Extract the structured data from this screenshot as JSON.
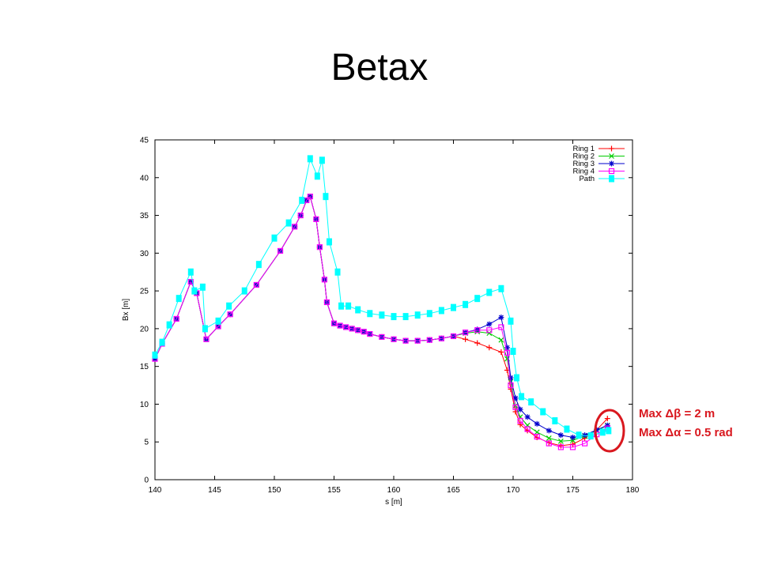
{
  "slide": {
    "title": "Betax",
    "annotation": {
      "line1": "Max Δβ = 2 m",
      "line2": "Max Δα = 0.5 rad"
    },
    "highlight_color": "#d9181f"
  },
  "chart_data": {
    "type": "line",
    "title": "",
    "xlabel": "s [m]",
    "ylabel": "Bx [m]",
    "xlim": [
      140,
      180
    ],
    "ylim": [
      0,
      45
    ],
    "xticks": [
      140,
      145,
      150,
      155,
      160,
      165,
      170,
      175,
      180
    ],
    "yticks": [
      0,
      5,
      10,
      15,
      20,
      25,
      30,
      35,
      40,
      45
    ],
    "grid": false,
    "legend_position": "top-right",
    "series": [
      {
        "name": "Ring 1",
        "color": "#ff0000",
        "marker": "plus",
        "points": [
          [
            140,
            16
          ],
          [
            140.6,
            18
          ],
          [
            141.8,
            21.3
          ],
          [
            143,
            26.2
          ],
          [
            143.5,
            24.7
          ],
          [
            144.3,
            18.6
          ],
          [
            145.3,
            20.3
          ],
          [
            146.3,
            21.9
          ],
          [
            148.5,
            25.8
          ],
          [
            150.5,
            30.3
          ],
          [
            151.7,
            33.5
          ],
          [
            152.2,
            35
          ],
          [
            152.7,
            37
          ],
          [
            153,
            37.5
          ],
          [
            153.5,
            34.5
          ],
          [
            153.8,
            30.8
          ],
          [
            154.2,
            26.5
          ],
          [
            154.4,
            23.5
          ],
          [
            155,
            20.7
          ],
          [
            155.5,
            20.4
          ],
          [
            156,
            20.2
          ],
          [
            156.5,
            20
          ],
          [
            157,
            19.8
          ],
          [
            157.5,
            19.6
          ],
          [
            158,
            19.3
          ],
          [
            159,
            18.9
          ],
          [
            160,
            18.6
          ],
          [
            161,
            18.4
          ],
          [
            162,
            18.4
          ],
          [
            163,
            18.5
          ],
          [
            164,
            18.7
          ],
          [
            165,
            19
          ],
          [
            166,
            18.6
          ],
          [
            167,
            18.1
          ],
          [
            168,
            17.5
          ],
          [
            169,
            16.9
          ],
          [
            169.5,
            14.5
          ],
          [
            169.8,
            12
          ],
          [
            170.2,
            9
          ],
          [
            170.6,
            7.3
          ],
          [
            171.2,
            6.5
          ],
          [
            172,
            5.6
          ],
          [
            173,
            4.9
          ],
          [
            174,
            4.5
          ],
          [
            175,
            4.7
          ],
          [
            176,
            5.5
          ],
          [
            177,
            6.6
          ],
          [
            177.9,
            8.1
          ]
        ]
      },
      {
        "name": "Ring 2",
        "color": "#00cc00",
        "marker": "cross",
        "points": [
          [
            140,
            16
          ],
          [
            140.6,
            18
          ],
          [
            141.8,
            21.3
          ],
          [
            143,
            26.2
          ],
          [
            143.5,
            24.7
          ],
          [
            144.3,
            18.6
          ],
          [
            145.3,
            20.3
          ],
          [
            146.3,
            21.9
          ],
          [
            148.5,
            25.8
          ],
          [
            150.5,
            30.3
          ],
          [
            151.7,
            33.5
          ],
          [
            152.2,
            35
          ],
          [
            152.7,
            37
          ],
          [
            153,
            37.5
          ],
          [
            153.5,
            34.5
          ],
          [
            153.8,
            30.8
          ],
          [
            154.2,
            26.5
          ],
          [
            154.4,
            23.5
          ],
          [
            155,
            20.7
          ],
          [
            155.5,
            20.4
          ],
          [
            156,
            20.2
          ],
          [
            156.5,
            20
          ],
          [
            157,
            19.8
          ],
          [
            157.5,
            19.6
          ],
          [
            158,
            19.3
          ],
          [
            159,
            18.9
          ],
          [
            160,
            18.6
          ],
          [
            161,
            18.4
          ],
          [
            162,
            18.4
          ],
          [
            163,
            18.5
          ],
          [
            164,
            18.7
          ],
          [
            165,
            19
          ],
          [
            166,
            19.4
          ],
          [
            167,
            19.6
          ],
          [
            168,
            19.4
          ],
          [
            169,
            18.5
          ],
          [
            169.5,
            16
          ],
          [
            169.8,
            13
          ],
          [
            170.2,
            9.8
          ],
          [
            170.6,
            8.3
          ],
          [
            171.2,
            7.2
          ],
          [
            172,
            6.3
          ],
          [
            173,
            5.5
          ],
          [
            174,
            5.1
          ],
          [
            175,
            5.2
          ],
          [
            176,
            5.8
          ],
          [
            177,
            6.5
          ],
          [
            177.9,
            7.2
          ]
        ]
      },
      {
        "name": "Ring 3",
        "color": "#0000cc",
        "marker": "star",
        "points": [
          [
            140,
            16
          ],
          [
            140.6,
            18
          ],
          [
            141.8,
            21.3
          ],
          [
            143,
            26.2
          ],
          [
            143.5,
            24.7
          ],
          [
            144.3,
            18.6
          ],
          [
            145.3,
            20.3
          ],
          [
            146.3,
            21.9
          ],
          [
            148.5,
            25.8
          ],
          [
            150.5,
            30.3
          ],
          [
            151.7,
            33.5
          ],
          [
            152.2,
            35
          ],
          [
            152.7,
            37
          ],
          [
            153,
            37.5
          ],
          [
            153.5,
            34.5
          ],
          [
            153.8,
            30.8
          ],
          [
            154.2,
            26.5
          ],
          [
            154.4,
            23.5
          ],
          [
            155,
            20.7
          ],
          [
            155.5,
            20.4
          ],
          [
            156,
            20.2
          ],
          [
            156.5,
            20
          ],
          [
            157,
            19.8
          ],
          [
            157.5,
            19.6
          ],
          [
            158,
            19.3
          ],
          [
            159,
            18.9
          ],
          [
            160,
            18.6
          ],
          [
            161,
            18.4
          ],
          [
            162,
            18.4
          ],
          [
            163,
            18.5
          ],
          [
            164,
            18.7
          ],
          [
            165,
            19
          ],
          [
            166,
            19.5
          ],
          [
            167,
            19.9
          ],
          [
            168,
            20.6
          ],
          [
            169,
            21.5
          ],
          [
            169.5,
            17.5
          ],
          [
            169.8,
            13.5
          ],
          [
            170.2,
            10.8
          ],
          [
            170.6,
            9.3
          ],
          [
            171.2,
            8.3
          ],
          [
            172,
            7.4
          ],
          [
            173,
            6.5
          ],
          [
            174,
            5.9
          ],
          [
            175,
            5.6
          ],
          [
            176,
            5.9
          ],
          [
            177,
            6.6
          ],
          [
            177.9,
            7.2
          ]
        ]
      },
      {
        "name": "Ring 4",
        "color": "#ff00ff",
        "marker": "square",
        "points": [
          [
            140,
            16
          ],
          [
            140.6,
            18
          ],
          [
            141.8,
            21.3
          ],
          [
            143,
            26.2
          ],
          [
            143.5,
            24.7
          ],
          [
            144.3,
            18.6
          ],
          [
            145.3,
            20.3
          ],
          [
            146.3,
            21.9
          ],
          [
            148.5,
            25.8
          ],
          [
            150.5,
            30.3
          ],
          [
            151.7,
            33.5
          ],
          [
            152.2,
            35
          ],
          [
            152.7,
            37
          ],
          [
            153,
            37.5
          ],
          [
            153.5,
            34.5
          ],
          [
            153.8,
            30.8
          ],
          [
            154.2,
            26.5
          ],
          [
            154.4,
            23.5
          ],
          [
            155,
            20.7
          ],
          [
            155.5,
            20.4
          ],
          [
            156,
            20.2
          ],
          [
            156.5,
            20
          ],
          [
            157,
            19.8
          ],
          [
            157.5,
            19.6
          ],
          [
            158,
            19.3
          ],
          [
            159,
            18.9
          ],
          [
            160,
            18.6
          ],
          [
            161,
            18.4
          ],
          [
            162,
            18.4
          ],
          [
            163,
            18.5
          ],
          [
            164,
            18.7
          ],
          [
            165,
            19
          ],
          [
            166,
            19.5
          ],
          [
            167,
            19.8
          ],
          [
            168,
            19.8
          ],
          [
            169,
            20.2
          ],
          [
            169.5,
            16.8
          ],
          [
            169.8,
            12.5
          ],
          [
            170.2,
            9.6
          ],
          [
            170.6,
            7.8
          ],
          [
            171.2,
            6.7
          ],
          [
            172,
            5.7
          ],
          [
            173,
            4.8
          ],
          [
            174,
            4.3
          ],
          [
            175,
            4.3
          ],
          [
            176,
            4.8
          ],
          [
            177,
            6
          ],
          [
            177.9,
            6.8
          ]
        ]
      },
      {
        "name": "Path",
        "color": "#00ffff",
        "marker": "filled-square",
        "points": [
          [
            140,
            16.5
          ],
          [
            140.6,
            18.2
          ],
          [
            141.2,
            20.5
          ],
          [
            142,
            24
          ],
          [
            143,
            27.5
          ],
          [
            143.3,
            25
          ],
          [
            144,
            25.5
          ],
          [
            144.2,
            20
          ],
          [
            145.3,
            21
          ],
          [
            146.2,
            23
          ],
          [
            147.5,
            25
          ],
          [
            148.7,
            28.5
          ],
          [
            150,
            32
          ],
          [
            151.2,
            34
          ],
          [
            152.3,
            37
          ],
          [
            153,
            42.5
          ],
          [
            153.6,
            40.2
          ],
          [
            154,
            42.3
          ],
          [
            154.3,
            37.5
          ],
          [
            154.6,
            31.5
          ],
          [
            155.3,
            27.5
          ],
          [
            155.6,
            23
          ],
          [
            156.2,
            23
          ],
          [
            157,
            22.5
          ],
          [
            158,
            22
          ],
          [
            159,
            21.8
          ],
          [
            160,
            21.6
          ],
          [
            161,
            21.6
          ],
          [
            162,
            21.8
          ],
          [
            163,
            22
          ],
          [
            164,
            22.4
          ],
          [
            165,
            22.8
          ],
          [
            166,
            23.2
          ],
          [
            167,
            24
          ],
          [
            168,
            24.8
          ],
          [
            169,
            25.3
          ],
          [
            169.8,
            21
          ],
          [
            170,
            17
          ],
          [
            170.3,
            13.5
          ],
          [
            170.7,
            11
          ],
          [
            171.5,
            10.3
          ],
          [
            172.5,
            9
          ],
          [
            173.5,
            7.8
          ],
          [
            174.5,
            6.7
          ],
          [
            175.5,
            5.9
          ],
          [
            176.5,
            5.8
          ],
          [
            177.5,
            6.3
          ],
          [
            178,
            6.5
          ]
        ]
      }
    ]
  }
}
